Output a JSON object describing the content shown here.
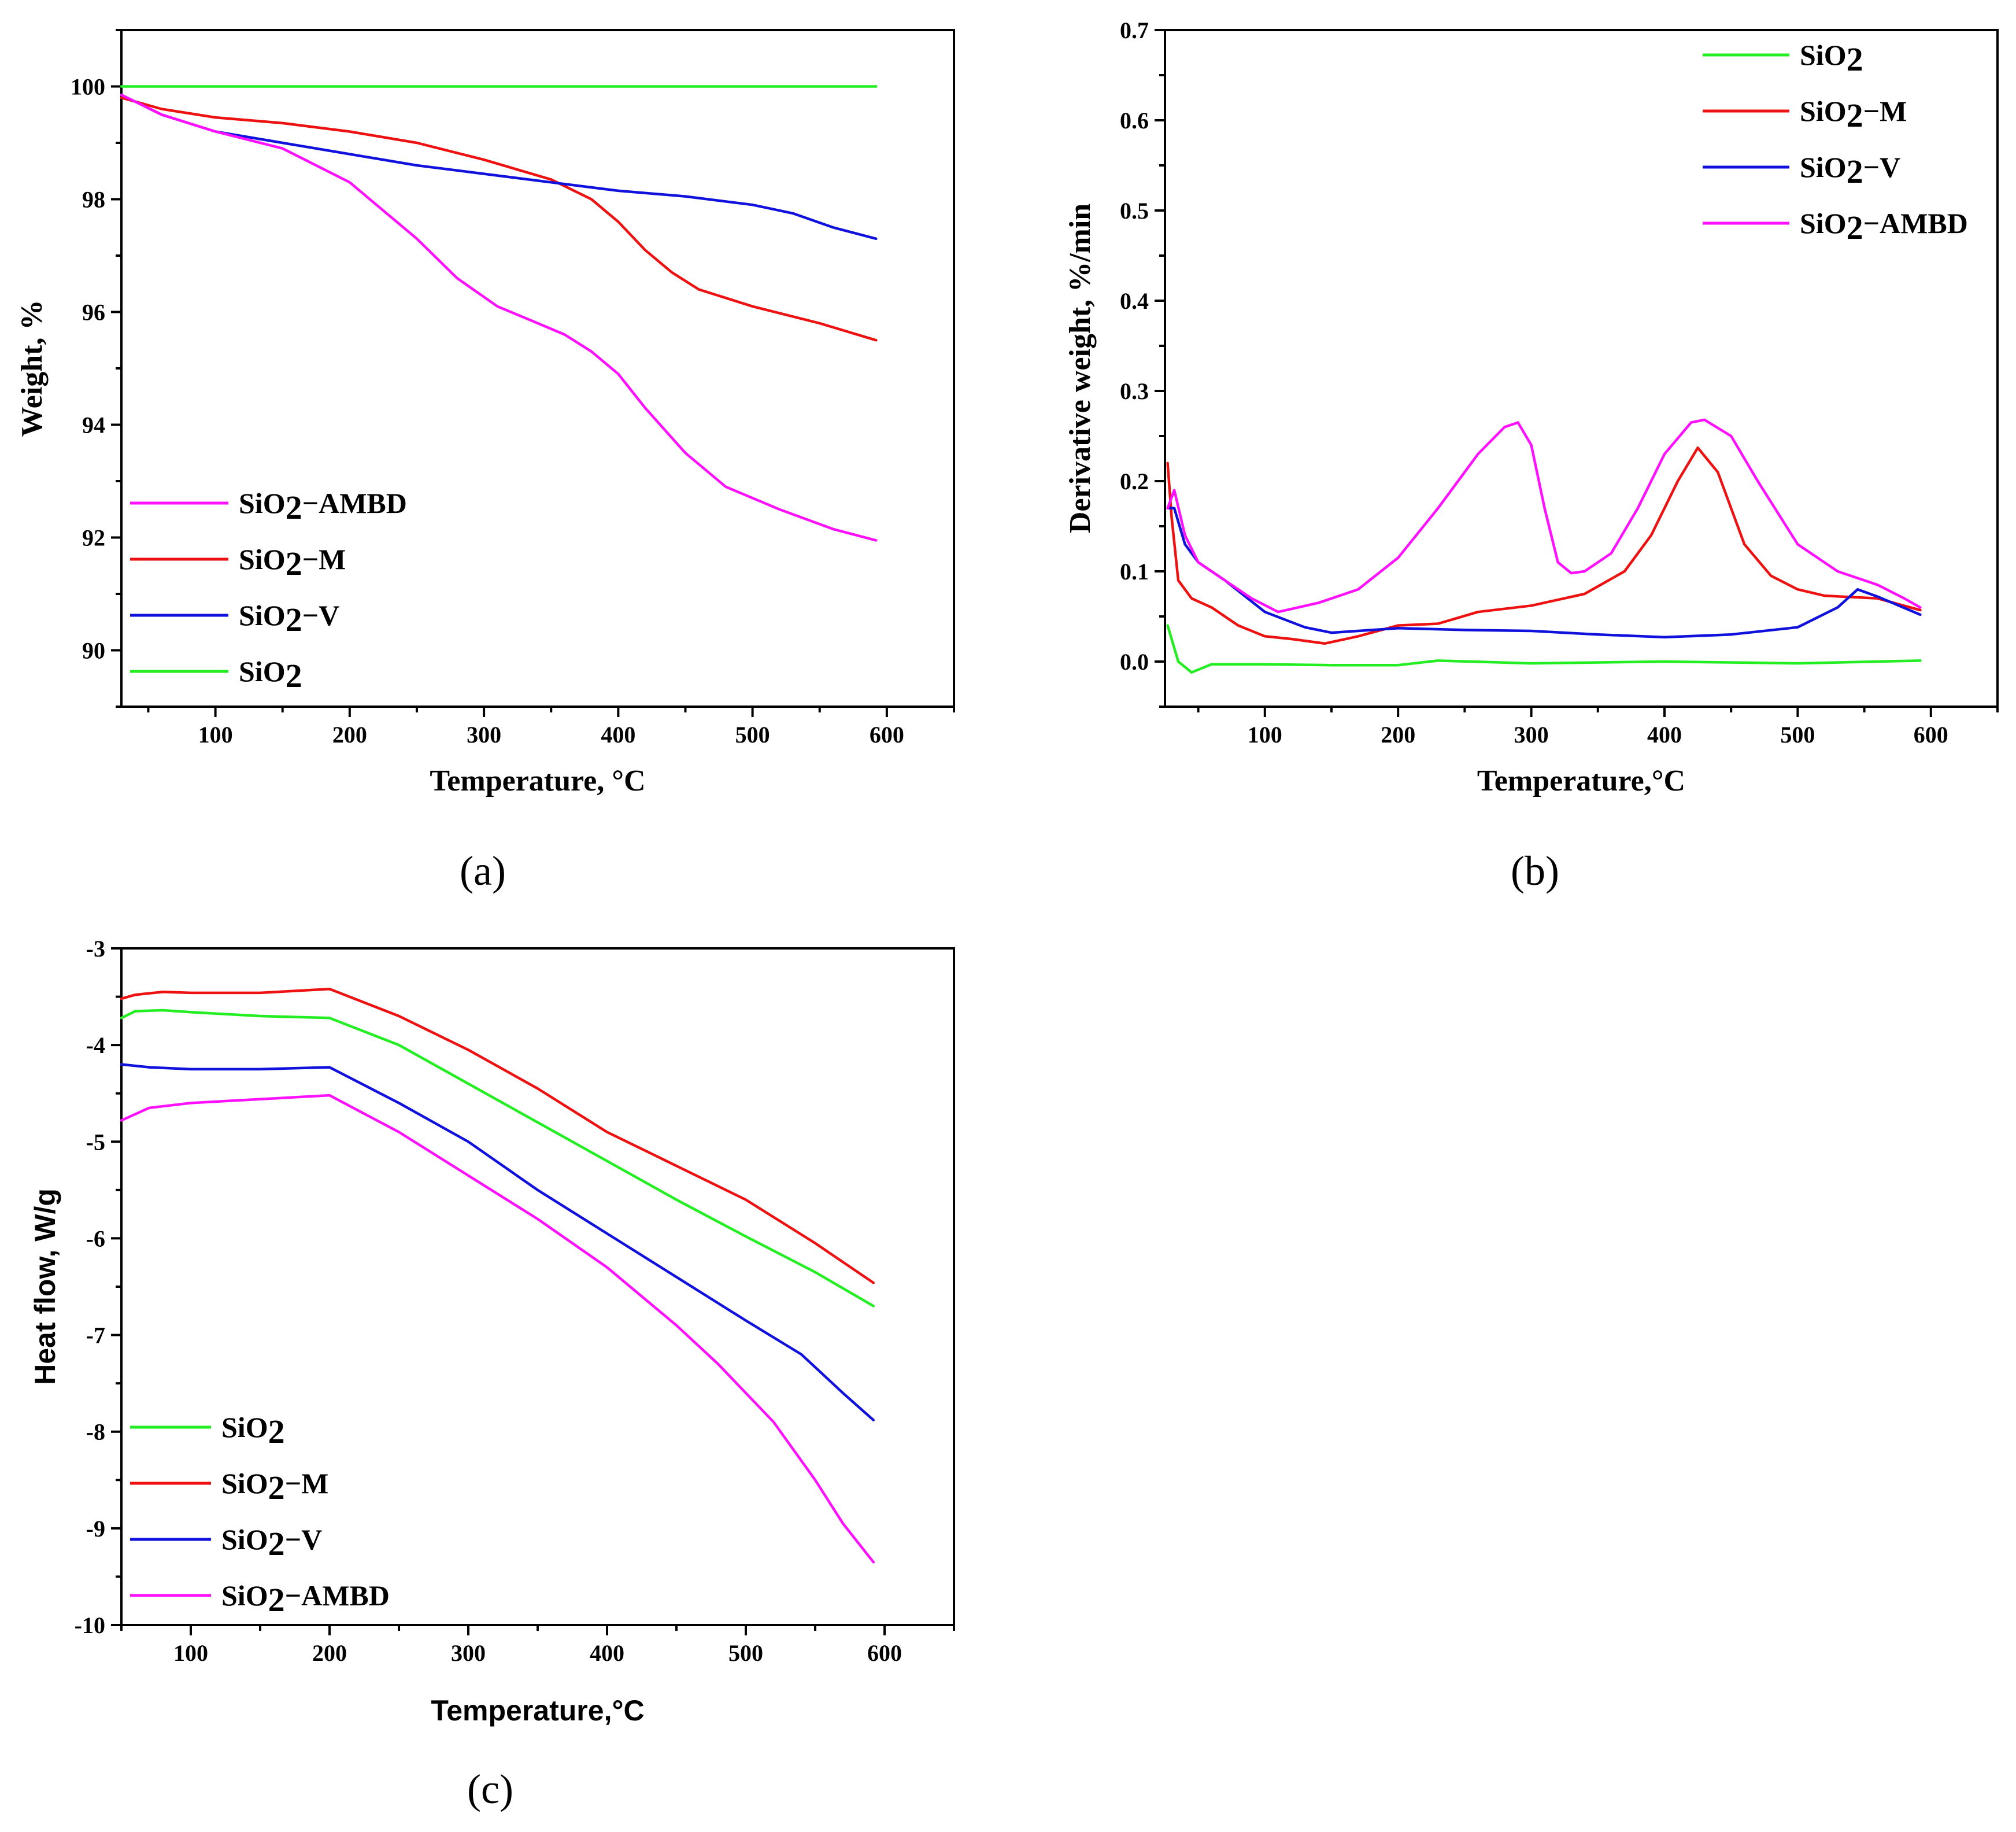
{
  "colors": {
    "SiO2": "#22ee22",
    "SiO2-M": "#ee1111",
    "SiO2-V": "#1111dd",
    "SiO2-AMBD": "#ff11ff"
  },
  "chart_data": [
    {
      "id": "a",
      "type": "line",
      "panel_label": "(a)",
      "xlabel": "Temperature, °C",
      "ylabel": "Weight, %",
      "xlim": [
        30,
        650
      ],
      "ylim": [
        89,
        101
      ],
      "xticks": [
        100,
        200,
        300,
        400,
        500,
        600
      ],
      "yticks": [
        90,
        92,
        94,
        96,
        98,
        100
      ],
      "legend_position": "bottom-left",
      "legend_order": [
        "SiO2-AMBD",
        "SiO2-M",
        "SiO2-V",
        "SiO2"
      ],
      "series": [
        {
          "key": "SiO2",
          "name": "SiO",
          "sub": "2",
          "suffix": "",
          "x": [
            30,
            100,
            200,
            300,
            400,
            500,
            592
          ],
          "y": [
            100,
            100,
            100,
            100,
            100,
            100,
            100
          ]
        },
        {
          "key": "SiO2-M",
          "name": "SiO",
          "sub": "2",
          "suffix": "−M",
          "x": [
            30,
            60,
            100,
            150,
            200,
            250,
            300,
            350,
            380,
            400,
            420,
            440,
            460,
            500,
            550,
            592
          ],
          "y": [
            99.8,
            99.6,
            99.45,
            99.35,
            99.2,
            99.0,
            98.7,
            98.35,
            98.0,
            97.6,
            97.1,
            96.7,
            96.4,
            96.1,
            95.8,
            95.5
          ],
          "note": "SiO2−M"
        },
        {
          "key": "SiO2-V",
          "name": "SiO",
          "sub": "2",
          "suffix": "−V",
          "x": [
            30,
            60,
            100,
            150,
            200,
            250,
            300,
            350,
            400,
            450,
            500,
            530,
            560,
            592
          ],
          "y": [
            99.85,
            99.5,
            99.2,
            99.0,
            98.8,
            98.6,
            98.45,
            98.3,
            98.15,
            98.05,
            97.9,
            97.75,
            97.5,
            97.3
          ]
        },
        {
          "key": "SiO2-AMBD",
          "name": "SiO",
          "sub": "2",
          "suffix": "−AMBD",
          "x": [
            30,
            60,
            100,
            150,
            200,
            250,
            280,
            310,
            330,
            360,
            380,
            400,
            420,
            450,
            480,
            520,
            560,
            592
          ],
          "y": [
            99.85,
            99.5,
            99.2,
            98.9,
            98.3,
            97.3,
            96.6,
            96.1,
            95.9,
            95.6,
            95.3,
            94.9,
            94.3,
            93.5,
            92.9,
            92.5,
            92.15,
            91.95
          ]
        }
      ]
    },
    {
      "id": "b",
      "type": "line",
      "panel_label": "(b)",
      "xlabel": "Temperature,°C",
      "ylabel": "Derivative weight, %/min",
      "xlim": [
        25,
        650
      ],
      "ylim": [
        -0.05,
        0.7
      ],
      "xticks": [
        100,
        200,
        300,
        400,
        500,
        600
      ],
      "yticks": [
        0.0,
        0.1,
        0.2,
        0.3,
        0.4,
        0.5,
        0.6,
        0.7
      ],
      "ytick_labels": [
        "0.0",
        "0.1",
        "0.2",
        "0.3",
        "0.4",
        "0.5",
        "0.6",
        "0.7"
      ],
      "legend_position": "top-right",
      "legend_order": [
        "SiO2",
        "SiO2-M",
        "SiO2-V",
        "SiO2-AMBD"
      ],
      "series": [
        {
          "key": "SiO2",
          "name": "SiO",
          "sub": "2",
          "suffix": "",
          "x": [
            27,
            35,
            45,
            60,
            100,
            150,
            200,
            230,
            300,
            400,
            500,
            560,
            592
          ],
          "y": [
            0.04,
            0.0,
            -0.012,
            -0.003,
            -0.003,
            -0.004,
            -0.004,
            0.001,
            -0.002,
            0.0,
            -0.002,
            0.0,
            0.001
          ]
        },
        {
          "key": "SiO2-M",
          "name": "SiO",
          "sub": "2",
          "suffix": "−M",
          "x": [
            27,
            30,
            35,
            45,
            60,
            80,
            100,
            120,
            145,
            170,
            200,
            230,
            260,
            300,
            340,
            370,
            390,
            410,
            425,
            440,
            460,
            480,
            500,
            520,
            560,
            592
          ],
          "y": [
            0.22,
            0.16,
            0.09,
            0.07,
            0.06,
            0.04,
            0.028,
            0.025,
            0.02,
            0.028,
            0.04,
            0.042,
            0.055,
            0.062,
            0.075,
            0.1,
            0.14,
            0.2,
            0.237,
            0.21,
            0.13,
            0.095,
            0.08,
            0.073,
            0.07,
            0.057
          ]
        },
        {
          "key": "SiO2-V",
          "name": "SiO",
          "sub": "2",
          "suffix": "−V",
          "x": [
            27,
            32,
            40,
            50,
            70,
            100,
            130,
            150,
            200,
            250,
            300,
            350,
            400,
            450,
            500,
            530,
            545,
            560,
            592
          ],
          "y": [
            0.17,
            0.17,
            0.13,
            0.11,
            0.09,
            0.055,
            0.038,
            0.032,
            0.037,
            0.035,
            0.034,
            0.03,
            0.027,
            0.03,
            0.038,
            0.06,
            0.08,
            0.072,
            0.052
          ]
        },
        {
          "key": "SiO2-AMBD",
          "name": "SiO",
          "sub": "2",
          "suffix": "−AMBD",
          "x": [
            27,
            32,
            40,
            50,
            70,
            90,
            110,
            140,
            170,
            200,
            230,
            260,
            280,
            290,
            300,
            310,
            320,
            330,
            340,
            360,
            380,
            400,
            420,
            430,
            450,
            470,
            500,
            530,
            560,
            580,
            592
          ],
          "y": [
            0.17,
            0.19,
            0.14,
            0.11,
            0.09,
            0.07,
            0.055,
            0.065,
            0.08,
            0.115,
            0.17,
            0.23,
            0.26,
            0.265,
            0.24,
            0.17,
            0.11,
            0.098,
            0.1,
            0.12,
            0.17,
            0.23,
            0.265,
            0.268,
            0.25,
            0.2,
            0.13,
            0.1,
            0.085,
            0.07,
            0.06
          ]
        }
      ]
    },
    {
      "id": "c",
      "type": "line",
      "panel_label": "(c)",
      "xlabel": "Temperature,°C",
      "ylabel": "Heat flow, W/g",
      "xlim": [
        50,
        650
      ],
      "ylim": [
        -10,
        -3
      ],
      "xticks": [
        100,
        200,
        300,
        400,
        500,
        600
      ],
      "yticks": [
        -10,
        -9,
        -8,
        -7,
        -6,
        -5,
        -4,
        -3
      ],
      "legend_position": "bottom-left",
      "legend_order": [
        "SiO2",
        "SiO2-M",
        "SiO2-V",
        "SiO2-AMBD"
      ],
      "series": [
        {
          "key": "SiO2",
          "name": "SiO",
          "sub": "2",
          "suffix": "",
          "x": [
            50,
            60,
            80,
            100,
            150,
            200,
            250,
            300,
            350,
            400,
            450,
            500,
            550,
            592
          ],
          "y": [
            -3.72,
            -3.65,
            -3.64,
            -3.66,
            -3.7,
            -3.72,
            -4.0,
            -4.4,
            -4.8,
            -5.2,
            -5.6,
            -5.98,
            -6.35,
            -6.7
          ]
        },
        {
          "key": "SiO2-M",
          "name": "SiO",
          "sub": "2",
          "suffix": "−M",
          "x": [
            50,
            60,
            80,
            100,
            150,
            200,
            250,
            300,
            350,
            400,
            450,
            500,
            550,
            592
          ],
          "y": [
            -3.52,
            -3.48,
            -3.45,
            -3.46,
            -3.46,
            -3.42,
            -3.7,
            -4.05,
            -4.45,
            -4.9,
            -5.25,
            -5.6,
            -6.05,
            -6.46
          ]
        },
        {
          "key": "SiO2-V",
          "name": "SiO",
          "sub": "2",
          "suffix": "−V",
          "x": [
            50,
            70,
            100,
            150,
            200,
            250,
            300,
            350,
            400,
            450,
            500,
            540,
            570,
            592
          ],
          "y": [
            -4.2,
            -4.23,
            -4.25,
            -4.25,
            -4.23,
            -4.6,
            -5.0,
            -5.5,
            -5.95,
            -6.4,
            -6.85,
            -7.2,
            -7.6,
            -7.88
          ]
        },
        {
          "key": "SiO2-AMBD",
          "name": "SiO",
          "sub": "2",
          "suffix": "−AMBD",
          "x": [
            50,
            70,
            100,
            150,
            200,
            250,
            300,
            350,
            400,
            450,
            480,
            520,
            550,
            570,
            592
          ],
          "y": [
            -4.78,
            -4.65,
            -4.6,
            -4.56,
            -4.52,
            -4.9,
            -5.35,
            -5.8,
            -6.3,
            -6.9,
            -7.3,
            -7.9,
            -8.5,
            -8.95,
            -9.35
          ]
        }
      ]
    }
  ]
}
